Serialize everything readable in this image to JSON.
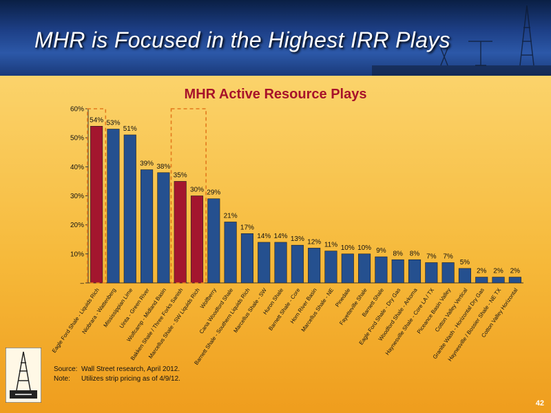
{
  "header": {
    "title": "MHR is Focused in the Highest IRR Plays"
  },
  "footnotes": [
    {
      "key": "Source:",
      "text": "Wall Street research, April 2012."
    },
    {
      "key": "Note:",
      "text": "Utilizes strip pricing as of 4/9/12."
    }
  ],
  "page_number": "42",
  "colors": {
    "highlight": "#a3162e",
    "bar": "#25508f",
    "title": "#a7122a",
    "box": "#e2791d"
  },
  "chart_data": {
    "type": "bar",
    "title": "MHR Active Resource Plays",
    "xlabel": "",
    "ylabel": "",
    "ylim": [
      0,
      60
    ],
    "y_ticks": [
      {
        "value": 0,
        "label": "–"
      },
      {
        "value": 10,
        "label": "10%"
      },
      {
        "value": 20,
        "label": "20%"
      },
      {
        "value": 30,
        "label": "30%"
      },
      {
        "value": 40,
        "label": "40%"
      },
      {
        "value": 50,
        "label": "50%"
      },
      {
        "value": 60,
        "label": "60%"
      }
    ],
    "categories": [
      "Eagle Ford Shale - Liquids Rich",
      "Niobrara - Wattenberg",
      "Mississippian Lime",
      "Uinta - Green River",
      "Wolfcamp - Midland Basin",
      "Bakken Shale / Three Forks Sanish",
      "Marcellus Shale - SW Liquids Rich",
      "Wolfberry",
      "Cana Woodford Shale",
      "Barnett Shale - Southern Liquids Rich",
      "Marcellus Shale - SW",
      "Huron Shale",
      "Barnett Shale - Core",
      "Horn River Basin",
      "Marcellus Shale - NE",
      "Pinedale",
      "Fayetteville Shale",
      "Barnett Shale",
      "Eagle Ford Shale - Dry Gas",
      "Woodford Shale - Arkoma",
      "Haynesville Shale - Core LA / TX",
      "Piceance Basin Valley",
      "Cotton Valley Vertical",
      "Granite Wash - Horizontal Dry Gas",
      "Haynesville / Bossier Shale - NE TX",
      "Cotton Valley Horizontal"
    ],
    "values": [
      54,
      53,
      51,
      39,
      38,
      35,
      30,
      29,
      21,
      17,
      14,
      14,
      13,
      12,
      11,
      10,
      10,
      9,
      8,
      8,
      7,
      7,
      5,
      2,
      2,
      2
    ],
    "value_labels": [
      "54%",
      "53%",
      "51%",
      "39%",
      "38%",
      "35%",
      "30%",
      "29%",
      "21%",
      "17%",
      "14%",
      "14%",
      "13%",
      "12%",
      "11%",
      "10%",
      "10%",
      "9%",
      "8%",
      "8%",
      "7%",
      "7%",
      "5%",
      "2%",
      "2%",
      "2%"
    ],
    "highlighted": [
      0,
      5,
      6
    ],
    "boxed_groups": [
      [
        0,
        0
      ],
      [
        5,
        6
      ]
    ],
    "legend": "none",
    "grid": false
  }
}
